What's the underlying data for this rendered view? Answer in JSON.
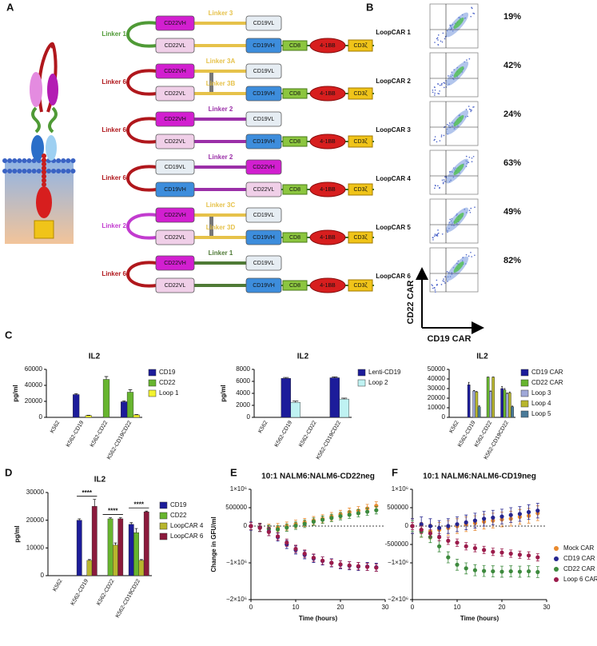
{
  "panel_labels": [
    "A",
    "B",
    "C",
    "D",
    "E",
    "F"
  ],
  "panel_a": {
    "constructs": [
      {
        "loop": {
          "label": "Linker 1",
          "color": "#4f9a36"
        },
        "top": [
          {
            "label": "CD22VH",
            "color": "#d21fd0"
          },
          {
            "label": "Linker 3",
            "color": "#e6c24a"
          },
          {
            "label": "CD19VL",
            "color": "#e6edf3"
          }
        ],
        "bottom": [
          {
            "label": "CD22VL",
            "color": "#f0cfe8"
          },
          {
            "color": "#e6c24a"
          },
          {
            "label": "CD19VH",
            "color": "#3d8ddc"
          }
        ],
        "signaling": [
          {
            "label": "CD8",
            "color": "#8cc63f"
          },
          {
            "label": "4-1BB",
            "color": "#d71e1e"
          },
          {
            "label": "CD3ζ",
            "color": "#f0c419"
          }
        ]
      },
      {
        "loop": {
          "label": "Linker 6",
          "color": "#b0171c"
        },
        "bridge": true,
        "top": [
          {
            "label": "CD22VH",
            "color": "#d21fd0"
          },
          {
            "label": "Linker 3A",
            "color": "#e6c24a"
          },
          {
            "label": "CD19VL",
            "color": "#e6edf3"
          }
        ],
        "bottom": [
          {
            "label": "CD22VL",
            "color": "#f0cfe8"
          },
          {
            "label": "Linker 3B",
            "color": "#e6c24a"
          },
          {
            "label": "CD19VH",
            "color": "#3d8ddc"
          }
        ],
        "signaling": [
          {
            "label": "CD8",
            "color": "#8cc63f"
          },
          {
            "label": "4-1BB",
            "color": "#d71e1e"
          },
          {
            "label": "CD3ζ",
            "color": "#f0c419"
          }
        ]
      },
      {
        "loop": {
          "label": "Linker 6",
          "color": "#b0171c"
        },
        "top": [
          {
            "label": "CD22VH",
            "color": "#d21fd0"
          },
          {
            "label": "Linker 2",
            "color": "#9b2fa8"
          },
          {
            "label": "CD19VL",
            "color": "#e6edf3"
          }
        ],
        "bottom": [
          {
            "label": "CD22VL",
            "color": "#f0cfe8"
          },
          {
            "color": "#9b2fa8"
          },
          {
            "label": "CD19VH",
            "color": "#3d8ddc"
          }
        ],
        "signaling": [
          {
            "label": "CD8",
            "color": "#8cc63f"
          },
          {
            "label": "4-1BB",
            "color": "#d71e1e"
          },
          {
            "label": "CD3ζ",
            "color": "#f0c419"
          }
        ]
      },
      {
        "loop": {
          "label": "Linker 6",
          "color": "#b0171c"
        },
        "top": [
          {
            "label": "CD19VL",
            "color": "#e6edf3"
          },
          {
            "label": "Linker 2",
            "color": "#9b2fa8"
          },
          {
            "label": "CD22VH",
            "color": "#d21fd0"
          }
        ],
        "bottom": [
          {
            "label": "CD19VH",
            "color": "#3d8ddc"
          },
          {
            "color": "#9b2fa8"
          },
          {
            "label": "CD22VL",
            "color": "#f0cfe8"
          }
        ],
        "signaling": [
          {
            "label": "CD8",
            "color": "#8cc63f"
          },
          {
            "label": "4-1BB",
            "color": "#d71e1e"
          },
          {
            "label": "CD3ζ",
            "color": "#f0c419"
          }
        ]
      },
      {
        "loop": {
          "label": "Linker 2",
          "color": "#c23bcf"
        },
        "bridge": true,
        "top": [
          {
            "label": "CD22VH",
            "color": "#d21fd0"
          },
          {
            "label": "Linker 3C",
            "color": "#e6c24a"
          },
          {
            "label": "CD19VL",
            "color": "#e6edf3"
          }
        ],
        "bottom": [
          {
            "label": "CD22VL",
            "color": "#f0cfe8"
          },
          {
            "label": "Linker 3D",
            "color": "#e6c24a"
          },
          {
            "label": "CD19VH",
            "color": "#3d8ddc"
          }
        ],
        "signaling": [
          {
            "label": "CD8",
            "color": "#8cc63f"
          },
          {
            "label": "4-1BB",
            "color": "#d71e1e"
          },
          {
            "label": "CD3ζ",
            "color": "#f0c419"
          }
        ]
      },
      {
        "loop": {
          "label": "Linker 6",
          "color": "#b0171c"
        },
        "top": [
          {
            "label": "CD22VH",
            "color": "#d21fd0"
          },
          {
            "label": "Linker 1",
            "color": "#4f7a36"
          },
          {
            "label": "CD19VL",
            "color": "#e6edf3"
          }
        ],
        "bottom": [
          {
            "label": "CD22VL",
            "color": "#f0cfe8"
          },
          {
            "color": "#4f7a36"
          },
          {
            "label": "CD19VH",
            "color": "#3d8ddc"
          }
        ],
        "signaling": [
          {
            "label": "CD8",
            "color": "#8cc63f"
          },
          {
            "label": "4-1BB",
            "color": "#d71e1e"
          },
          {
            "label": "CD3ζ",
            "color": "#f0c419"
          }
        ]
      }
    ]
  },
  "panel_b": {
    "rows": [
      {
        "label": "LoopCAR 1",
        "percent": "19%"
      },
      {
        "label": "LoopCAR 2",
        "percent": "42%"
      },
      {
        "label": "LoopCAR 3",
        "percent": "24%"
      },
      {
        "label": "LoopCAR 4",
        "percent": "63%"
      },
      {
        "label": "LoopCAR 5",
        "percent": "49%"
      },
      {
        "label": "LoopCAR 6",
        "percent": "82%"
      }
    ],
    "y_axis": "CD22 CAR",
    "x_axis": "CD19 CAR"
  },
  "chart_data": [
    {
      "type": "bar",
      "title": "IL2",
      "ylabel": "pg/ml",
      "categories": [
        "K562",
        "K562-CD19",
        "K562-CD22",
        "K562-CD19CD22"
      ],
      "series": [
        {
          "name": "CD19",
          "color": "#1c1c9a",
          "values": [
            0,
            28500,
            0,
            19500
          ],
          "errors": [
            0,
            1200,
            0,
            1200
          ]
        },
        {
          "name": "CD22",
          "color": "#67b52f",
          "values": [
            0,
            0,
            47500,
            31500
          ],
          "errors": [
            0,
            0,
            3500,
            3000
          ]
        },
        {
          "name": "Loop 1",
          "color": "#f3f32f",
          "values": [
            0,
            2200,
            0,
            3000
          ],
          "errors": [
            0,
            400,
            0,
            500
          ]
        }
      ],
      "ylim": [
        0,
        60000
      ],
      "yticks": [
        0,
        20000,
        40000,
        60000
      ],
      "legend": "right"
    },
    {
      "type": "bar",
      "title": "IL2",
      "ylabel": "pg/ml",
      "categories": [
        "K562",
        "K562-CD19",
        "K562-CD22",
        "K562-CD19CD22"
      ],
      "series": [
        {
          "name": "Lenti-CD19",
          "color": "#1c1c9a",
          "values": [
            0,
            6500,
            0,
            6600
          ],
          "errors": [
            0,
            150,
            0,
            150
          ]
        },
        {
          "name": "Loop 2",
          "color": "#bff2f2",
          "values": [
            0,
            2500,
            0,
            3050
          ],
          "errors": [
            0,
            200,
            0,
            150
          ]
        }
      ],
      "ylim": [
        0,
        8000
      ],
      "yticks": [
        0,
        2000,
        4000,
        6000,
        8000
      ],
      "legend": "right"
    },
    {
      "type": "bar",
      "title": "IL2",
      "categories": [
        "K562",
        "K562-CD19",
        "K562-CD22",
        "K562-CD19CD22"
      ],
      "series": [
        {
          "name": "CD19 CAR",
          "color": "#1c1c9a",
          "values": [
            0,
            34000,
            0,
            30000
          ],
          "errors": [
            0,
            2500,
            0,
            2000
          ]
        },
        {
          "name": "CD22 CAR",
          "color": "#67b52f",
          "values": [
            0,
            0,
            42000,
            28500
          ],
          "errors": [
            0,
            0,
            0,
            1500
          ]
        },
        {
          "name": "Loop 3",
          "color": "#9fa8d8",
          "values": [
            0,
            27500,
            27000,
            24500
          ],
          "errors": [
            0,
            500,
            500,
            800
          ]
        },
        {
          "name": "Loop 4",
          "color": "#b8b62e",
          "values": [
            0,
            26500,
            42000,
            25500
          ],
          "errors": [
            0,
            500,
            0,
            1000
          ]
        },
        {
          "name": "Loop 5",
          "color": "#4a7a99",
          "values": [
            0,
            11000,
            0,
            11000
          ],
          "errors": [
            0,
            1000,
            0,
            800
          ]
        }
      ],
      "ylim": [
        0,
        50000
      ],
      "yticks": [
        0,
        10000,
        20000,
        30000,
        40000,
        50000
      ],
      "legend": "right"
    },
    {
      "type": "bar",
      "title": "IL2",
      "ylabel": "pg/ml",
      "categories": [
        "K562",
        "K562-CD19",
        "K562-CD22",
        "K562-CD19CD22"
      ],
      "series": [
        {
          "name": "CD19",
          "color": "#1c1c9a",
          "values": [
            0,
            20000,
            0,
            18500
          ],
          "errors": [
            0,
            500,
            0,
            600
          ]
        },
        {
          "name": "CD22",
          "color": "#67b52f",
          "values": [
            0,
            0,
            20500,
            15500
          ],
          "errors": [
            0,
            0,
            400,
            1500
          ]
        },
        {
          "name": "LoopCAR 4",
          "color": "#b8b62e",
          "values": [
            0,
            5500,
            11000,
            5500
          ],
          "errors": [
            0,
            300,
            800,
            300
          ]
        },
        {
          "name": "LoopCAR 6",
          "color": "#8b1a3c",
          "values": [
            0,
            25000,
            20500,
            23000
          ],
          "errors": [
            0,
            2500,
            400,
            300
          ]
        }
      ],
      "significance": [
        "****",
        "****",
        "****"
      ],
      "ylim": [
        0,
        30000
      ],
      "yticks": [
        0,
        10000,
        20000,
        30000
      ],
      "legend": "right"
    },
    {
      "type": "scatter",
      "title": "10:1 NALM6:NALM6-CD22neg",
      "ylabel": "Change in GFU/ml",
      "xlabel": "Time (hours)",
      "x": [
        0,
        2,
        4,
        6,
        8,
        10,
        12,
        14,
        16,
        18,
        20,
        22,
        24,
        26,
        28
      ],
      "series": [
        {
          "name": "Mock CAR",
          "color": "#ea8a2e",
          "error": 110000,
          "values": [
            0,
            -30000,
            -60000,
            -40000,
            0,
            50000,
            100000,
            150000,
            200000,
            260000,
            320000,
            380000,
            420000,
            480000,
            550000
          ]
        },
        {
          "name": "CD22 CAR",
          "color": "#3d8a3d",
          "error": 100000,
          "values": [
            0,
            -40000,
            -80000,
            -90000,
            -40000,
            10000,
            60000,
            120000,
            170000,
            220000,
            270000,
            310000,
            350000,
            390000,
            430000
          ]
        },
        {
          "name": "CD19 CAR",
          "color": "#25258f",
          "error": 110000,
          "values": [
            0,
            -40000,
            -150000,
            -300000,
            -500000,
            -650000,
            -780000,
            -880000,
            -950000,
            -1000000,
            -1050000,
            -1080000,
            -1100000,
            -1100000,
            -1120000
          ]
        },
        {
          "name": "Loop 6 CAR",
          "color": "#9b1b4b",
          "error": 100000,
          "values": [
            0,
            -50000,
            -160000,
            -280000,
            -450000,
            -620000,
            -750000,
            -860000,
            -940000,
            -1000000,
            -1040000,
            -1070000,
            -1090000,
            -1110000,
            -1130000
          ]
        }
      ],
      "xlim": [
        0,
        30
      ],
      "xticks": [
        0,
        10,
        20,
        30
      ],
      "ylim": [
        -2000000,
        1000000
      ],
      "yticks": [
        {
          "value": -2000000,
          "label": "−2×10⁶"
        },
        {
          "value": -1000000,
          "label": "−1×10⁶"
        },
        0,
        500000,
        {
          "value": 1000000,
          "label": "1×10⁶"
        }
      ],
      "zero_line": true,
      "legend": false
    },
    {
      "type": "scatter",
      "title": "10:1 NALM6:NALM6-CD19neg",
      "xlabel": "Time (hours)",
      "x": [
        0,
        2,
        4,
        6,
        8,
        10,
        12,
        14,
        16,
        18,
        20,
        22,
        24,
        26,
        28
      ],
      "series": [
        {
          "name": "Mock CAR",
          "color": "#ea8a2e",
          "error": 200000,
          "values": [
            0,
            -100000,
            -150000,
            -100000,
            -50000,
            0,
            50000,
            80000,
            120000,
            150000,
            180000,
            200000,
            250000,
            280000,
            350000
          ]
        },
        {
          "name": "CD19 CAR",
          "color": "#25258f",
          "error": 200000,
          "values": [
            0,
            50000,
            0,
            -50000,
            0,
            50000,
            100000,
            150000,
            200000,
            230000,
            260000,
            300000,
            330000,
            380000,
            420000
          ]
        },
        {
          "name": "CD22 CAR",
          "color": "#3d8a3d",
          "error": 150000,
          "values": [
            0,
            -150000,
            -300000,
            -550000,
            -850000,
            -1050000,
            -1150000,
            -1200000,
            -1220000,
            -1230000,
            -1240000,
            -1230000,
            -1240000,
            -1230000,
            -1250000
          ]
        },
        {
          "name": "Loop 6 CAR",
          "color": "#9b1b4b",
          "error": 100000,
          "values": [
            0,
            -100000,
            -200000,
            -300000,
            -400000,
            -450000,
            -550000,
            -600000,
            -650000,
            -700000,
            -720000,
            -750000,
            -780000,
            -800000,
            -850000
          ]
        }
      ],
      "xlim": [
        0,
        30
      ],
      "xticks": [
        0,
        10,
        20,
        30
      ],
      "ylim": [
        -2000000,
        1000000
      ],
      "yticks": [
        {
          "value": -2000000,
          "label": "−2×10⁶"
        },
        {
          "value": -1000000,
          "label": "−1×10⁶"
        },
        -500000,
        0,
        500000,
        {
          "value": 1000000,
          "label": "1×10⁶"
        }
      ],
      "zero_line": true,
      "legend": "right"
    }
  ]
}
